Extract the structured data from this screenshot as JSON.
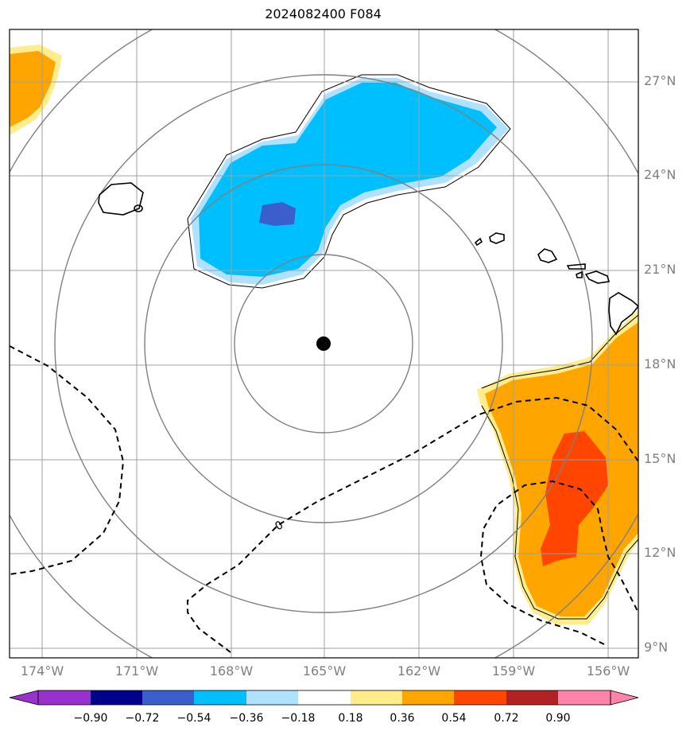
{
  "title": "2024082400 F084",
  "lat_ticks": [
    "27°N",
    "24°N",
    "21°N",
    "18°N",
    "15°N",
    "12°N",
    "9°N"
  ],
  "lon_ticks": [
    "174°W",
    "171°W",
    "168°W",
    "165°W",
    "162°W",
    "159°W",
    "156°W"
  ],
  "contour_label": "0",
  "colorbar": {
    "levels": [
      "−0.90",
      "−0.72",
      "−0.54",
      "−0.36",
      "−0.18",
      "0.18",
      "0.36",
      "0.54",
      "0.72",
      "0.90"
    ],
    "colors": [
      "#9932cc",
      "#00008b",
      "#3a5fcd",
      "#00bfff",
      "#b0e2ff",
      "#ffffff",
      "#ffec8b",
      "#ffa500",
      "#ff4500",
      "#b22222",
      "#ff83aa"
    ]
  },
  "colors": {
    "strong_negative": "#3a5fcd",
    "negative": "#00bfff",
    "weak_negative": "#b0e2ff",
    "weak_positive": "#ffec8b",
    "positive": "#ffa500",
    "strong_positive": "#ff4500",
    "grid": "#a0a0a0",
    "range_rings": "#808080"
  }
}
